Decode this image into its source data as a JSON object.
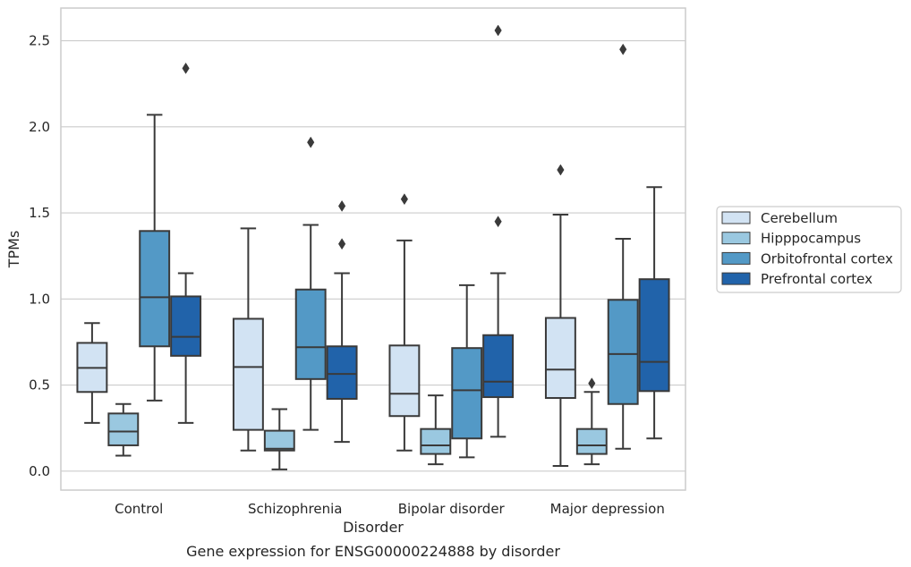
{
  "chart_data": {
    "type": "box",
    "title": "",
    "caption": "Gene expression for ENSG00000224888 by disorder",
    "xlabel": "Disorder",
    "ylabel": "TPMs",
    "ylim": [
      -0.11,
      2.69
    ],
    "yticks": [
      0.0,
      0.5,
      1.0,
      1.5,
      2.0,
      2.5
    ],
    "ytick_labels": [
      "0.0",
      "0.5",
      "1.0",
      "1.5",
      "2.0",
      "2.5"
    ],
    "grid": "horizontal",
    "legend_position": "right",
    "categories": [
      "Control",
      "Schizophrenia",
      "Bipolar disorder",
      "Major depression"
    ],
    "series": [
      {
        "name": "Cerebellum",
        "color": "#d2e3f3",
        "boxes": [
          {
            "whisker_low": 0.28,
            "q1": 0.46,
            "median": 0.6,
            "q3": 0.745,
            "whisker_high": 0.86,
            "outliers": []
          },
          {
            "whisker_low": 0.12,
            "q1": 0.24,
            "median": 0.605,
            "q3": 0.885,
            "whisker_high": 1.41,
            "outliers": []
          },
          {
            "whisker_low": 0.12,
            "q1": 0.32,
            "median": 0.45,
            "q3": 0.73,
            "whisker_high": 1.34,
            "outliers": [
              1.58
            ]
          },
          {
            "whisker_low": 0.03,
            "q1": 0.425,
            "median": 0.59,
            "q3": 0.89,
            "whisker_high": 1.49,
            "outliers": [
              1.75
            ]
          }
        ]
      },
      {
        "name": "Hipppocampus",
        "color": "#9ac8e0",
        "boxes": [
          {
            "whisker_low": 0.09,
            "q1": 0.15,
            "median": 0.23,
            "q3": 0.335,
            "whisker_high": 0.39,
            "outliers": []
          },
          {
            "whisker_low": 0.01,
            "q1": 0.12,
            "median": 0.13,
            "q3": 0.235,
            "whisker_high": 0.36,
            "outliers": []
          },
          {
            "whisker_low": 0.04,
            "q1": 0.1,
            "median": 0.15,
            "q3": 0.245,
            "whisker_high": 0.44,
            "outliers": []
          },
          {
            "whisker_low": 0.04,
            "q1": 0.1,
            "median": 0.15,
            "q3": 0.245,
            "whisker_high": 0.46,
            "outliers": [
              0.51
            ]
          }
        ]
      },
      {
        "name": "Orbitofrontal cortex",
        "color": "#5399c6",
        "boxes": [
          {
            "whisker_low": 0.41,
            "q1": 0.725,
            "median": 1.01,
            "q3": 1.395,
            "whisker_high": 2.07,
            "outliers": []
          },
          {
            "whisker_low": 0.24,
            "q1": 0.535,
            "median": 0.72,
            "q3": 1.055,
            "whisker_high": 1.43,
            "outliers": [
              1.91
            ]
          },
          {
            "whisker_low": 0.08,
            "q1": 0.19,
            "median": 0.47,
            "q3": 0.715,
            "whisker_high": 1.08,
            "outliers": []
          },
          {
            "whisker_low": 0.13,
            "q1": 0.39,
            "median": 0.68,
            "q3": 0.995,
            "whisker_high": 1.35,
            "outliers": [
              2.45
            ]
          }
        ]
      },
      {
        "name": "Prefrontal cortex",
        "color": "#2163aa",
        "boxes": [
          {
            "whisker_low": 0.28,
            "q1": 0.67,
            "median": 0.78,
            "q3": 1.015,
            "whisker_high": 1.15,
            "outliers": [
              2.34
            ]
          },
          {
            "whisker_low": 0.17,
            "q1": 0.42,
            "median": 0.565,
            "q3": 0.725,
            "whisker_high": 1.15,
            "outliers": [
              1.32,
              1.54
            ]
          },
          {
            "whisker_low": 0.2,
            "q1": 0.43,
            "median": 0.52,
            "q3": 0.79,
            "whisker_high": 1.15,
            "outliers": [
              1.45,
              2.56
            ]
          },
          {
            "whisker_low": 0.19,
            "q1": 0.465,
            "median": 0.635,
            "q3": 1.115,
            "whisker_high": 1.65,
            "outliers": []
          }
        ]
      }
    ],
    "style": {
      "line_color": "#3a3a3a",
      "grid_color": "#cccccc",
      "frame_color": "#cccccc",
      "background": "#ffffff"
    }
  }
}
